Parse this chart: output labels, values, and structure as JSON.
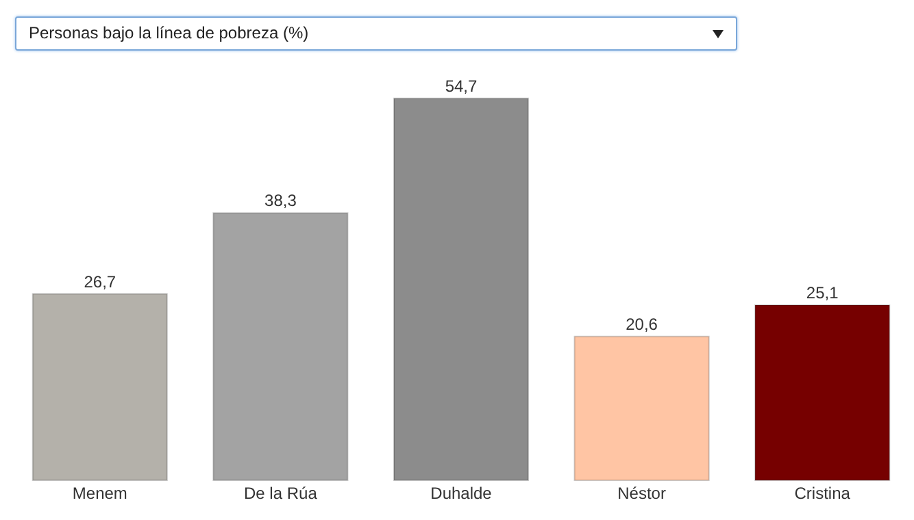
{
  "chart_data": {
    "type": "bar",
    "title": "Personas bajo la línea de pobreza (%)",
    "categories": [
      "Menem",
      "De la Rúa",
      "Duhalde",
      "Néstor",
      "Cristina"
    ],
    "values": [
      26.7,
      38.3,
      54.7,
      20.6,
      25.1
    ],
    "colors": [
      "#b4b1aa",
      "#a3a3a3",
      "#8c8c8c",
      "#ffc5a4",
      "#760000"
    ],
    "value_labels": [
      "26,7",
      "38,3",
      "54,7",
      "20,6",
      "25,1"
    ]
  }
}
